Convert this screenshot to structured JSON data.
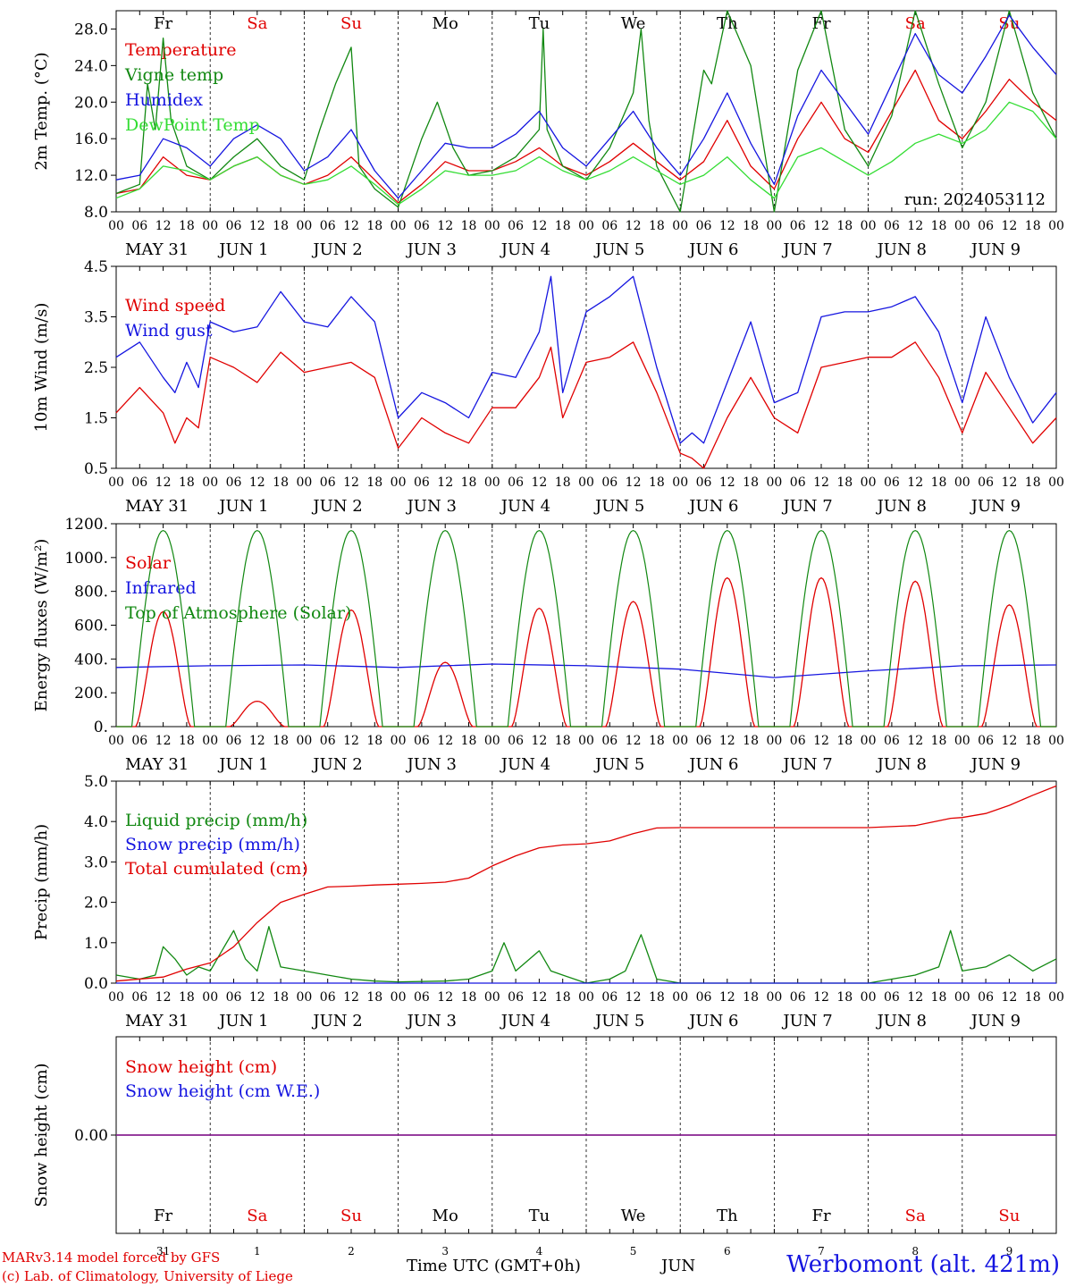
{
  "run_label": "run: 2024053112",
  "time_axis": {
    "hour_ticks": [
      "00",
      "06",
      "12",
      "18"
    ],
    "date_labels": [
      "MAY 31",
      "JUN  1",
      "JUN  2",
      "JUN  3",
      "JUN  4",
      "JUN  5",
      "JUN  6",
      "JUN  7",
      "JUN  8",
      "JUN  9"
    ],
    "weekdays": [
      "Fr",
      "Sa",
      "Su",
      "Mo",
      "Tu",
      "We",
      "Th",
      "Fr",
      "Sa",
      "Su"
    ],
    "weekday_colors": [
      "#000000",
      "#e00000",
      "#e00000",
      "#000000",
      "#000000",
      "#000000",
      "#000000",
      "#000000",
      "#e00000",
      "#e00000"
    ],
    "day_numbers": [
      "31",
      "1",
      "2",
      "3",
      "4",
      "5",
      "6",
      "7",
      "8",
      "9"
    ],
    "month_label": "JUN",
    "xlabel": "Time UTC (GMT+0h)"
  },
  "footer": {
    "model": "MARv3.14 model forced by GFS",
    "credit": "(c) Lab. of Climatology, University of Liege",
    "station": "Werbomont (alt. 421m)"
  },
  "chart_data": [
    {
      "type": "line",
      "ylabel": "2m Temp. (°C)",
      "ylim": [
        8,
        30
      ],
      "yticks": [
        "8.0",
        "12.0",
        "16.0",
        "20.0",
        "24.0",
        "28.0"
      ],
      "x_unit": "hours since 2024-05-31 00 UTC",
      "series": [
        {
          "name": "Temperature",
          "color": "#e00000",
          "x": [
            0,
            6,
            12,
            18,
            24,
            30,
            36,
            42,
            48,
            54,
            60,
            66,
            72,
            78,
            84,
            90,
            96,
            102,
            108,
            114,
            120,
            126,
            132,
            138,
            144,
            150,
            156,
            162,
            168,
            174,
            180,
            186,
            192,
            198,
            204,
            210,
            216,
            222,
            228,
            234,
            240
          ],
          "values": [
            10.0,
            10.5,
            14.0,
            12.0,
            11.5,
            13.0,
            14.0,
            12.0,
            11.0,
            12.0,
            14.0,
            11.5,
            9.0,
            11.0,
            13.5,
            12.5,
            12.5,
            13.5,
            15.0,
            13.0,
            12.0,
            13.5,
            15.5,
            13.5,
            11.5,
            13.5,
            18.0,
            13.0,
            10.5,
            16.0,
            20.0,
            16.0,
            14.5,
            19.0,
            23.5,
            18.0,
            16.0,
            19.0,
            22.5,
            20.0,
            18.0
          ]
        },
        {
          "name": "Vigne temp",
          "color": "#118811",
          "x": [
            0,
            6,
            8,
            10,
            12,
            14,
            18,
            24,
            30,
            36,
            42,
            48,
            52,
            56,
            60,
            62,
            66,
            72,
            78,
            82,
            86,
            90,
            96,
            102,
            108,
            109,
            110,
            114,
            120,
            126,
            132,
            134,
            136,
            138,
            144,
            150,
            152,
            156,
            162,
            168,
            174,
            180,
            186,
            192,
            198,
            204,
            210,
            216,
            222,
            228,
            234,
            240
          ],
          "values": [
            10.0,
            11.0,
            22.0,
            17.0,
            27.0,
            18.0,
            13.0,
            11.5,
            14.0,
            16.0,
            13.0,
            11.5,
            17.0,
            22.0,
            26.0,
            13.0,
            10.5,
            8.5,
            16.0,
            20.0,
            15.0,
            12.0,
            12.5,
            14.0,
            17.0,
            28.0,
            17.0,
            13.0,
            11.5,
            15.0,
            21.0,
            28.0,
            18.0,
            13.0,
            8.0,
            23.5,
            22.0,
            30.0,
            24.0,
            8.0,
            23.5,
            30.0,
            17.0,
            13.0,
            18.5,
            30.0,
            22.0,
            15.0,
            20.0,
            30.0,
            21.0,
            16.0
          ]
        },
        {
          "name": "Humidex",
          "color": "#1515e0",
          "x": [
            0,
            6,
            12,
            18,
            24,
            30,
            36,
            42,
            48,
            54,
            60,
            66,
            72,
            78,
            84,
            90,
            96,
            102,
            108,
            114,
            120,
            126,
            132,
            138,
            144,
            150,
            156,
            162,
            168,
            174,
            180,
            186,
            192,
            198,
            204,
            210,
            216,
            222,
            228,
            234,
            240
          ],
          "values": [
            11.5,
            12.0,
            16.0,
            15.0,
            13.0,
            16.0,
            17.5,
            16.0,
            12.5,
            14.0,
            17.0,
            12.5,
            9.5,
            12.5,
            15.5,
            15.0,
            15.0,
            16.5,
            19.0,
            15.0,
            13.0,
            16.0,
            19.0,
            15.0,
            12.0,
            16.0,
            21.0,
            15.5,
            11.0,
            18.5,
            23.5,
            20.0,
            16.5,
            22.0,
            27.5,
            23.0,
            21.0,
            25.0,
            29.5,
            26.0,
            23.0
          ]
        },
        {
          "name": "DewPoint Temp",
          "color": "#33dd33",
          "x": [
            0,
            6,
            12,
            18,
            24,
            30,
            36,
            42,
            48,
            54,
            60,
            66,
            72,
            78,
            84,
            90,
            96,
            102,
            108,
            114,
            120,
            126,
            132,
            138,
            144,
            150,
            156,
            162,
            168,
            174,
            180,
            186,
            192,
            198,
            204,
            210,
            216,
            222,
            228,
            234,
            240
          ],
          "values": [
            9.5,
            10.5,
            13.0,
            12.5,
            11.5,
            13.0,
            14.0,
            12.0,
            11.0,
            11.5,
            13.0,
            11.0,
            8.8,
            10.5,
            12.5,
            12.0,
            12.0,
            12.5,
            14.0,
            12.5,
            11.5,
            12.5,
            14.0,
            12.5,
            11.0,
            12.0,
            14.0,
            11.5,
            9.5,
            14.0,
            15.0,
            13.5,
            12.0,
            13.5,
            15.5,
            16.5,
            15.5,
            17.0,
            20.0,
            19.0,
            16.0
          ]
        }
      ]
    },
    {
      "type": "line",
      "ylabel": "10m Wind (m/s)",
      "ylim": [
        0.5,
        4.5
      ],
      "yticks": [
        "0.5",
        "1.5",
        "2.5",
        "3.5",
        "4.5"
      ],
      "x_unit": "hours since 2024-05-31 00 UTC",
      "series": [
        {
          "name": "Wind speed",
          "color": "#e00000",
          "x": [
            0,
            6,
            12,
            15,
            18,
            21,
            24,
            30,
            36,
            42,
            48,
            54,
            60,
            66,
            72,
            78,
            84,
            90,
            96,
            102,
            108,
            111,
            114,
            120,
            126,
            132,
            138,
            144,
            147,
            150,
            156,
            162,
            168,
            174,
            180,
            186,
            192,
            198,
            204,
            210,
            216,
            222,
            228,
            234,
            240
          ],
          "values": [
            1.6,
            2.1,
            1.6,
            1.0,
            1.5,
            1.3,
            2.7,
            2.5,
            2.2,
            2.8,
            2.4,
            2.5,
            2.6,
            2.3,
            0.9,
            1.5,
            1.2,
            1.0,
            1.7,
            1.7,
            2.3,
            2.9,
            1.5,
            2.6,
            2.7,
            3.0,
            2.0,
            0.8,
            0.7,
            0.5,
            1.5,
            2.3,
            1.5,
            1.2,
            2.5,
            2.6,
            2.7,
            2.7,
            3.0,
            2.3,
            1.2,
            2.4,
            1.7,
            1.0,
            1.5
          ]
        },
        {
          "name": "Wind gust",
          "color": "#1515e0",
          "x": [
            0,
            6,
            12,
            15,
            18,
            21,
            24,
            30,
            36,
            42,
            48,
            54,
            60,
            66,
            72,
            78,
            84,
            90,
            96,
            102,
            108,
            111,
            114,
            120,
            126,
            132,
            138,
            144,
            147,
            150,
            156,
            162,
            168,
            174,
            180,
            186,
            192,
            198,
            204,
            210,
            216,
            222,
            228,
            234,
            240
          ],
          "values": [
            2.7,
            3.0,
            2.3,
            2.0,
            2.6,
            2.1,
            3.4,
            3.2,
            3.3,
            4.0,
            3.4,
            3.3,
            3.9,
            3.4,
            1.5,
            2.0,
            1.8,
            1.5,
            2.4,
            2.3,
            3.2,
            4.3,
            2.0,
            3.6,
            3.9,
            4.3,
            2.5,
            1.0,
            1.2,
            1.0,
            2.2,
            3.4,
            1.8,
            2.0,
            3.5,
            3.6,
            3.6,
            3.7,
            3.9,
            3.2,
            1.8,
            3.5,
            2.3,
            1.4,
            2.0
          ]
        }
      ]
    },
    {
      "type": "line",
      "ylabel": "Energy fluxes (W/m²)",
      "ylim": [
        0,
        1200
      ],
      "yticks": [
        "0.",
        "200.",
        "400.",
        "600.",
        "800.",
        "1000.",
        "1200."
      ],
      "x_unit": "hours since 2024-05-31 00 UTC",
      "series": [
        {
          "name": "Solar",
          "color": "#e00000",
          "daily_peaks": [
            680,
            150,
            690,
            380,
            700,
            740,
            880,
            880,
            860,
            720
          ]
        },
        {
          "name": "Infrared",
          "color": "#1515e0",
          "x": [
            0,
            24,
            48,
            72,
            96,
            120,
            144,
            168,
            192,
            216,
            240
          ],
          "values": [
            350,
            360,
            365,
            350,
            370,
            360,
            340,
            290,
            330,
            360,
            365
          ]
        },
        {
          "name": "Top of Atmosphere (Solar)",
          "color": "#118811",
          "daily_peak": 1160
        }
      ]
    },
    {
      "type": "line",
      "ylabel": "Precip (mm/h)",
      "ylim": [
        0,
        5
      ],
      "yticks": [
        "0.0",
        "1.0",
        "2.0",
        "3.0",
        "4.0",
        "5.0"
      ],
      "x_unit": "hours since 2024-05-31 00 UTC",
      "series": [
        {
          "name": "Liquid precip (mm/h)",
          "color": "#118811",
          "x": [
            0,
            6,
            10,
            12,
            15,
            18,
            21,
            24,
            27,
            30,
            33,
            36,
            39,
            42,
            48,
            54,
            60,
            66,
            72,
            84,
            90,
            96,
            99,
            102,
            108,
            111,
            114,
            120,
            126,
            130,
            134,
            138,
            144,
            192,
            198,
            204,
            210,
            213,
            216,
            222,
            228,
            234,
            240
          ],
          "values": [
            0.2,
            0.1,
            0.2,
            0.9,
            0.6,
            0.2,
            0.4,
            0.3,
            0.8,
            1.3,
            0.6,
            0.3,
            1.4,
            0.4,
            0.3,
            0.2,
            0.1,
            0.05,
            0.03,
            0.05,
            0.1,
            0.3,
            1.0,
            0.3,
            0.8,
            0.3,
            0.2,
            0.0,
            0.1,
            0.3,
            1.2,
            0.1,
            0.0,
            0.0,
            0.1,
            0.2,
            0.4,
            1.3,
            0.3,
            0.4,
            0.7,
            0.3,
            0.6
          ]
        },
        {
          "name": "Snow precip (mm/h)",
          "color": "#1515e0",
          "x": [
            0,
            240
          ],
          "values": [
            0,
            0
          ]
        },
        {
          "name": "Total cumulated (cm)",
          "color": "#e00000",
          "x": [
            0,
            12,
            18,
            24,
            30,
            36,
            42,
            48,
            54,
            60,
            66,
            72,
            78,
            84,
            90,
            96,
            102,
            108,
            114,
            120,
            126,
            132,
            138,
            144,
            192,
            204,
            213,
            216,
            222,
            228,
            234,
            240
          ],
          "values": [
            0.05,
            0.15,
            0.35,
            0.5,
            0.9,
            1.5,
            2.0,
            2.2,
            2.38,
            2.4,
            2.43,
            2.45,
            2.47,
            2.5,
            2.6,
            2.9,
            3.15,
            3.35,
            3.42,
            3.45,
            3.52,
            3.7,
            3.84,
            3.85,
            3.85,
            3.9,
            4.08,
            4.1,
            4.2,
            4.4,
            4.65,
            4.88
          ]
        }
      ]
    },
    {
      "type": "line",
      "ylabel": "Snow height (cm)",
      "ylim": [
        -1,
        1
      ],
      "yticks": [
        "0.00"
      ],
      "x_unit": "hours since 2024-05-31 00 UTC",
      "series": [
        {
          "name": "Snow height (cm)",
          "color": "#e00000",
          "x": [
            0,
            240
          ],
          "values": [
            0,
            0
          ]
        },
        {
          "name": "Snow height (cm W.E.)",
          "color": "#1515e0",
          "x": [
            0,
            240
          ],
          "values": [
            0,
            0
          ]
        }
      ]
    }
  ]
}
